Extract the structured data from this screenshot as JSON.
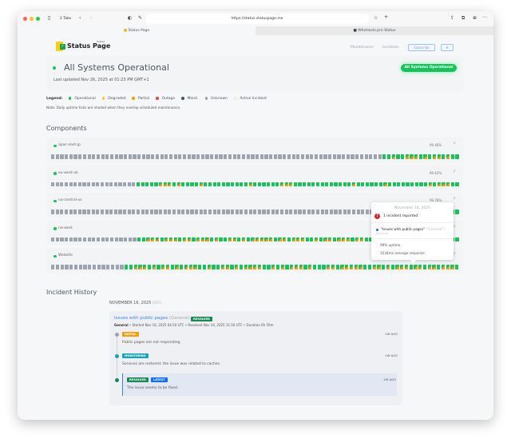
{
  "browser": {
    "tabs_count": "2 Tabs",
    "url": "https://status.statuspage.me",
    "tabs": [
      "Status Page",
      "WhoHosts.pro Status"
    ]
  },
  "header": {
    "logo": "Status Page",
    "logo_sub": "hosted",
    "nav": [
      "Maintenance",
      "Incidents"
    ],
    "subscribe": "Subscribe",
    "settings_icon": "gear-icon"
  },
  "status": {
    "title": "All Systems Operational",
    "updated": "Last updated Nov 26, 2025 at 01:23 PM GMT+1",
    "badge": "All Systems Operational"
  },
  "legend": {
    "label": "Legend:",
    "items": [
      {
        "label": "Operational",
        "color": "#16c35b"
      },
      {
        "label": "Degraded",
        "color": "#facc15"
      },
      {
        "label": "Partial",
        "color": "#f59e0b"
      },
      {
        "label": "Outage",
        "color": "#ef4444"
      },
      {
        "label": "Maint.",
        "color": "#475569"
      },
      {
        "label": "Unknown",
        "color": "#9ca3af"
      },
      {
        "label": "Active Incident",
        "color": "#fde9d2"
      }
    ],
    "note": "Note: Daily uptime ticks are shaded when they overlap scheduled maintenance."
  },
  "components": {
    "heading": "Components",
    "colors": {
      "g": "#9ca3af",
      "o": "#16c35b",
      "p": "#f59e0b"
    },
    "items": [
      {
        "name": "apac-east-jp",
        "uptime": "99.46%",
        "ticks": "gggggggggggggggggggggggggggggggggggggggggggggggggggggggggggggggggggggggggoopoopppopoppopoo"
      },
      {
        "name": "eu-west-uk",
        "uptime": "99.63%",
        "ticks": "gggggggggggggggggggooooopppopoooopoooooooooopoooooopppooooooooooooopoooooopooooooooopopppoo"
      },
      {
        "name": "na-central-us",
        "uptime": "99.78%",
        "ticks": "gggggggggggggggggggggggggggggggggggggggggggggggggggggggggggggggggggggggggggggggggggggoooooo"
      },
      {
        "name": "na-west",
        "uptime": "",
        "ticks": "gggggggggggggggggggoopppopppoppopppopooppopopppppoppopppoopoppopppoppoopppopppoppppoppppoo"
      },
      {
        "name": "Website",
        "uptime": "",
        "ticks": "ggggggggggggggggoopppopoppopopppoopooppopoppppoopopopppopoooppopppppooppopopppoppoppopppo"
      }
    ]
  },
  "tooltip": {
    "date": "November 16, 2025",
    "count": "1 incident reported",
    "incident": "\"Issues with public pages\"",
    "category": "(\"General\")",
    "state": "Resolved",
    "uptime": "99% uptime",
    "response": "1534ms average response"
  },
  "history": {
    "heading": "Incident History",
    "date": "NOVEMBER 16, 2025",
    "tz": "(UTC)",
    "incident": {
      "title": "Issues with public pages",
      "category": "(General)",
      "badge": "RESOLVED",
      "meta_bold": "General",
      "meta": "• Started Nov 16, 2025 04:50 UTC • Resolved Nov 16, 2025 11:50 UTC • Duration 6h 59m",
      "updates": [
        {
          "badge": "INITIAL",
          "color": "#f59e0b",
          "dot": "#9ca3af",
          "text": "Public pages are not responding.",
          "ago": "1W AGO"
        },
        {
          "badge": "MONITORING",
          "color": "#17a2b8",
          "dot": "#17a2b8",
          "text": "Services are restored; the issue was related to caches.",
          "ago": "1W AGO"
        },
        {
          "badge": "RESOLVED",
          "badge2": "LATEST",
          "color": "#198754",
          "dot": "#198754",
          "text": "The issue seems to be fixed.",
          "ago": "1W AGO"
        }
      ]
    }
  }
}
